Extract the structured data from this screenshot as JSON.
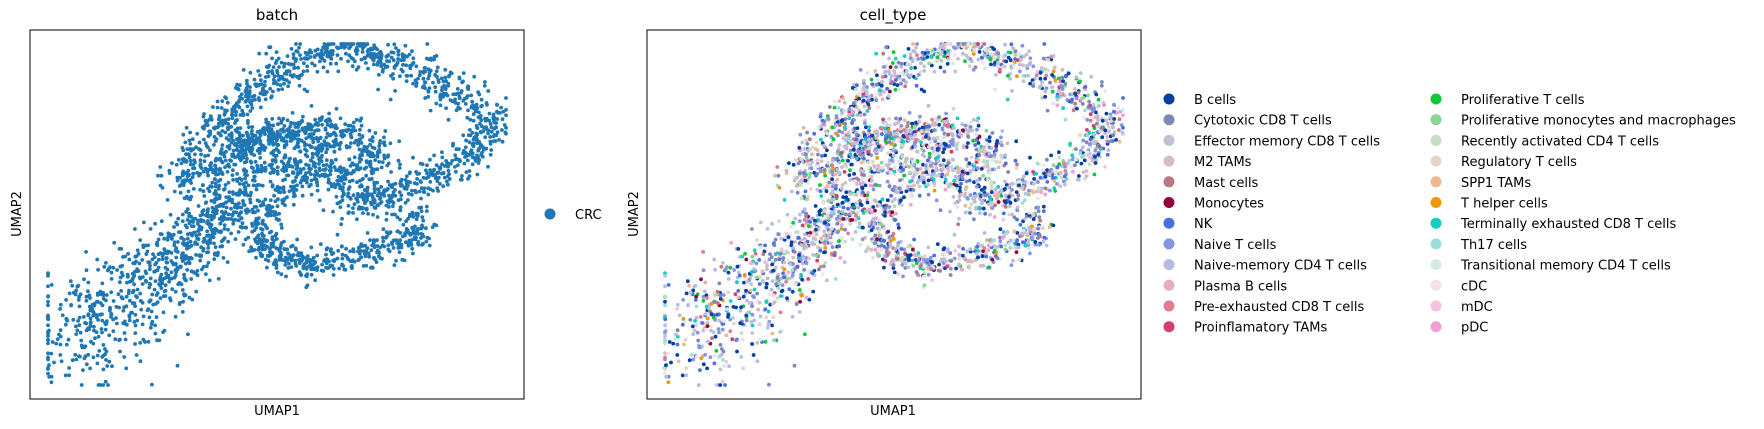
{
  "figure": {
    "panels": [
      {
        "title": "batch",
        "xlabel": "UMAP1",
        "ylabel": "UMAP2"
      },
      {
        "title": "cell_type",
        "xlabel": "UMAP1",
        "ylabel": "UMAP2"
      }
    ]
  },
  "chart_data": [
    {
      "type": "scatter",
      "title": "batch",
      "xlabel": "UMAP1",
      "ylabel": "UMAP2",
      "xticks": [],
      "yticks": [],
      "grid": false,
      "legend_placement": "right",
      "legend": [
        {
          "label": "CRC",
          "color": "#1f77b4"
        }
      ],
      "point_color": "#1f77b4",
      "approx_point_count": 3500
    },
    {
      "type": "scatter",
      "title": "cell_type",
      "xlabel": "UMAP1",
      "ylabel": "UMAP2",
      "xticks": [],
      "yticks": [],
      "grid": false,
      "legend_placement": "right",
      "legend_columns": [
        [
          {
            "label": "B cells",
            "color": "#023fa5"
          },
          {
            "label": "Cytotoxic CD8 T cells",
            "color": "#7d87b9"
          },
          {
            "label": "Effector memory CD8 T cells",
            "color": "#bec1d4"
          },
          {
            "label": "M2 TAMs",
            "color": "#d6bcc0"
          },
          {
            "label": "Mast cells",
            "color": "#bb7784"
          },
          {
            "label": "Monocytes",
            "color": "#8e063b"
          },
          {
            "label": "NK",
            "color": "#4a6fe3"
          },
          {
            "label": "Naive T cells",
            "color": "#8595e1"
          },
          {
            "label": "Naive-memory CD4 T cells",
            "color": "#b5bbe3"
          },
          {
            "label": "Plasma B cells",
            "color": "#e6afb9"
          },
          {
            "label": "Pre-exhausted CD8 T cells",
            "color": "#e07b91"
          },
          {
            "label": "Proinflamatory TAMs",
            "color": "#d33f6a"
          }
        ],
        [
          {
            "label": "Proliferative T cells",
            "color": "#11c638"
          },
          {
            "label": "Proliferative monocytes and macrophages",
            "color": "#8dd593"
          },
          {
            "label": "Recently activated CD4 T cells",
            "color": "#c6dec7"
          },
          {
            "label": "Regulatory T cells",
            "color": "#ead3c6"
          },
          {
            "label": "SPP1 TAMs",
            "color": "#f0b98d"
          },
          {
            "label": "T helper cells",
            "color": "#ef9708"
          },
          {
            "label": "Terminally exhausted CD8 T cells",
            "color": "#0fcfc0"
          },
          {
            "label": "Th17 cells",
            "color": "#9cded6"
          },
          {
            "label": "Transitional memory CD4 T cells",
            "color": "#d5eae7"
          },
          {
            "label": "cDC",
            "color": "#f3e1eb"
          },
          {
            "label": "mDC",
            "color": "#f6c4e1"
          },
          {
            "label": "pDC",
            "color": "#f79cd4"
          }
        ]
      ],
      "approx_point_count": 3500
    }
  ]
}
